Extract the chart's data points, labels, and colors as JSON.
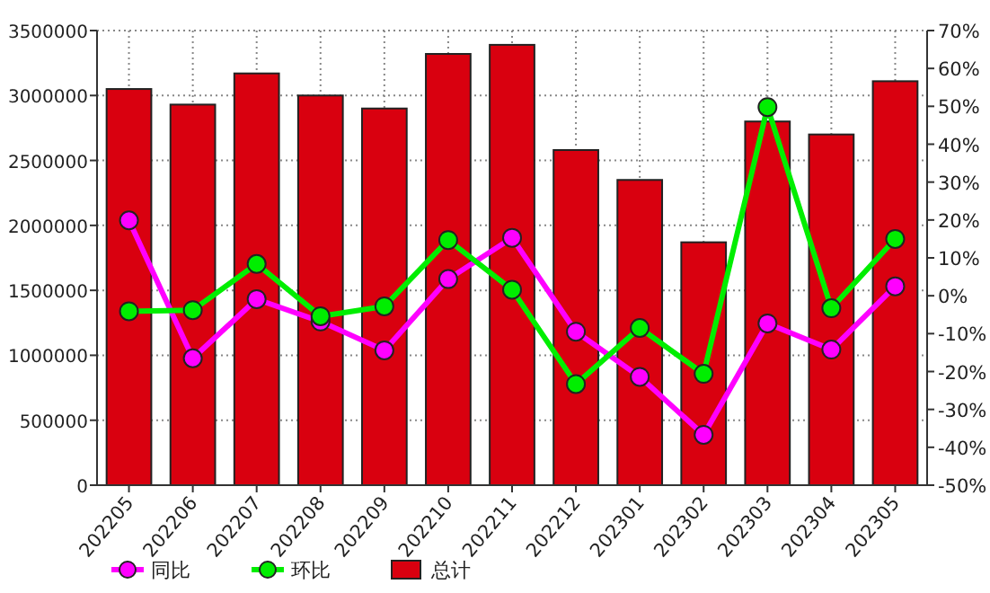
{
  "chart_data": {
    "type": "bar",
    "categories": [
      "202205",
      "202206",
      "202207",
      "202208",
      "202209",
      "202210",
      "202211",
      "202212",
      "202301",
      "202302",
      "202303",
      "202304",
      "202305"
    ],
    "series": [
      {
        "name": "同比",
        "type": "line",
        "axis": "y2",
        "color": "#ff00ff",
        "values": [
          19.9,
          -16.5,
          -0.9,
          -6.8,
          -14.4,
          4.4,
          15.3,
          -9.5,
          -21.4,
          -36.7,
          -7.3,
          -14.2,
          2.5
        ]
      },
      {
        "name": "环比",
        "type": "line",
        "axis": "y2",
        "color": "#00ee00",
        "values": [
          -4.1,
          -3.8,
          8.4,
          -5.4,
          -2.8,
          14.7,
          1.6,
          -23.3,
          -8.5,
          -20.6,
          49.8,
          -3.3,
          15.0
        ]
      },
      {
        "name": "总计",
        "color": "#d9000f",
        "values": [
          3050000,
          2930000,
          3170000,
          3000000,
          2900000,
          3320000,
          3390000,
          2580000,
          2350000,
          1870000,
          2800000,
          2700000,
          3110000
        ]
      }
    ],
    "ylim": [
      0,
      3500000
    ],
    "yticks": [
      0,
      500000,
      1000000,
      1500000,
      2000000,
      2500000,
      3000000,
      3500000
    ],
    "y2lim": [
      -50,
      70
    ],
    "y2ticks": [
      {
        "value": -50,
        "label": "-50%"
      },
      {
        "value": -40,
        "label": "-40%"
      },
      {
        "value": -30,
        "label": "-30%"
      },
      {
        "value": -20,
        "label": "-20%"
      },
      {
        "value": -10,
        "label": "-10%"
      },
      {
        "value": 0,
        "label": "0%"
      },
      {
        "value": 10,
        "label": "10%"
      },
      {
        "value": 20,
        "label": "20%"
      },
      {
        "value": 30,
        "label": "30%"
      },
      {
        "value": 40,
        "label": "40%"
      },
      {
        "value": 50,
        "label": "50%"
      },
      {
        "value": 60,
        "label": "60%"
      },
      {
        "value": 70,
        "label": "70%"
      }
    ],
    "grid": true,
    "legend": "bottom",
    "marker": "circle"
  }
}
